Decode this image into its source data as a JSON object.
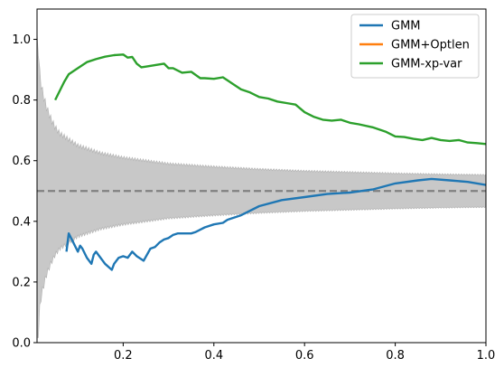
{
  "chart_data": {
    "type": "line",
    "title": "",
    "xlabel": "",
    "ylabel": "",
    "xlim": [
      0.01,
      1.0
    ],
    "ylim": [
      0.0,
      1.1
    ],
    "x_ticks": [
      {
        "value": 0.2,
        "label": "0.2"
      },
      {
        "value": 0.4,
        "label": "0.4"
      },
      {
        "value": 0.6,
        "label": "0.6"
      },
      {
        "value": 0.8,
        "label": "0.8"
      },
      {
        "value": 1.0,
        "label": "1.0"
      }
    ],
    "y_ticks": [
      {
        "value": 0.0,
        "label": "0.0"
      },
      {
        "value": 0.2,
        "label": "0.2"
      },
      {
        "value": 0.4,
        "label": "0.4"
      },
      {
        "value": 0.6,
        "label": "0.6"
      },
      {
        "value": 0.8,
        "label": "0.8"
      },
      {
        "value": 1.0,
        "label": "1.0"
      }
    ],
    "grid": false,
    "legend_position": "top-right",
    "reference_line": {
      "y": 0.5,
      "style": "dashed",
      "color": "#808080"
    },
    "confidence_band": {
      "color": "#c8c8c8",
      "center": 0.5,
      "x": [
        0.01,
        0.012,
        0.015,
        0.02,
        0.025,
        0.03,
        0.04,
        0.05,
        0.06,
        0.08,
        0.1,
        0.12,
        0.15,
        0.2,
        0.25,
        0.3,
        0.35,
        0.4,
        0.5,
        0.6,
        0.7,
        0.8,
        0.9,
        1.0
      ],
      "half_width": [
        0.5,
        0.5,
        0.4,
        0.34,
        0.31,
        0.28,
        0.24,
        0.21,
        0.19,
        0.17,
        0.15,
        0.14,
        0.125,
        0.11,
        0.1,
        0.09,
        0.085,
        0.08,
        0.072,
        0.066,
        0.062,
        0.058,
        0.055,
        0.053
      ]
    },
    "series": [
      {
        "name": "GMM",
        "color": "#1f77b4",
        "x": [
          0.075,
          0.08,
          0.09,
          0.1,
          0.105,
          0.11,
          0.12,
          0.13,
          0.135,
          0.14,
          0.15,
          0.16,
          0.175,
          0.18,
          0.19,
          0.2,
          0.21,
          0.22,
          0.23,
          0.245,
          0.26,
          0.27,
          0.28,
          0.29,
          0.3,
          0.31,
          0.32,
          0.35,
          0.36,
          0.38,
          0.4,
          0.42,
          0.43,
          0.46,
          0.5,
          0.55,
          0.6,
          0.65,
          0.7,
          0.75,
          0.8,
          0.85,
          0.88,
          0.92,
          0.96,
          1.0
        ],
        "y": [
          0.3,
          0.36,
          0.33,
          0.3,
          0.32,
          0.31,
          0.28,
          0.26,
          0.29,
          0.3,
          0.28,
          0.26,
          0.24,
          0.26,
          0.28,
          0.285,
          0.28,
          0.3,
          0.285,
          0.27,
          0.31,
          0.315,
          0.33,
          0.34,
          0.345,
          0.355,
          0.36,
          0.36,
          0.365,
          0.38,
          0.39,
          0.395,
          0.405,
          0.42,
          0.45,
          0.47,
          0.48,
          0.49,
          0.495,
          0.505,
          0.525,
          0.535,
          0.54,
          0.535,
          0.53,
          0.52
        ]
      },
      {
        "name": "GMM+Optlen",
        "color": "#ff7f0e",
        "x": [],
        "y": []
      },
      {
        "name": "GMM-xp-var",
        "color": "#2ca02c",
        "x": [
          0.05,
          0.07,
          0.08,
          0.1,
          0.12,
          0.14,
          0.16,
          0.18,
          0.2,
          0.21,
          0.22,
          0.23,
          0.24,
          0.25,
          0.27,
          0.29,
          0.3,
          0.31,
          0.33,
          0.35,
          0.37,
          0.38,
          0.4,
          0.42,
          0.44,
          0.46,
          0.48,
          0.5,
          0.52,
          0.54,
          0.56,
          0.58,
          0.6,
          0.62,
          0.64,
          0.66,
          0.68,
          0.7,
          0.72,
          0.75,
          0.78,
          0.8,
          0.82,
          0.84,
          0.86,
          0.88,
          0.9,
          0.92,
          0.94,
          0.96,
          0.98,
          1.0
        ],
        "y": [
          0.8,
          0.86,
          0.885,
          0.905,
          0.925,
          0.935,
          0.943,
          0.948,
          0.95,
          0.94,
          0.942,
          0.92,
          0.908,
          0.91,
          0.915,
          0.92,
          0.905,
          0.905,
          0.89,
          0.893,
          0.872,
          0.872,
          0.87,
          0.875,
          0.855,
          0.835,
          0.825,
          0.81,
          0.805,
          0.795,
          0.79,
          0.785,
          0.76,
          0.745,
          0.735,
          0.732,
          0.735,
          0.725,
          0.72,
          0.71,
          0.695,
          0.68,
          0.678,
          0.672,
          0.668,
          0.675,
          0.668,
          0.665,
          0.668,
          0.66,
          0.658,
          0.655
        ]
      }
    ]
  }
}
